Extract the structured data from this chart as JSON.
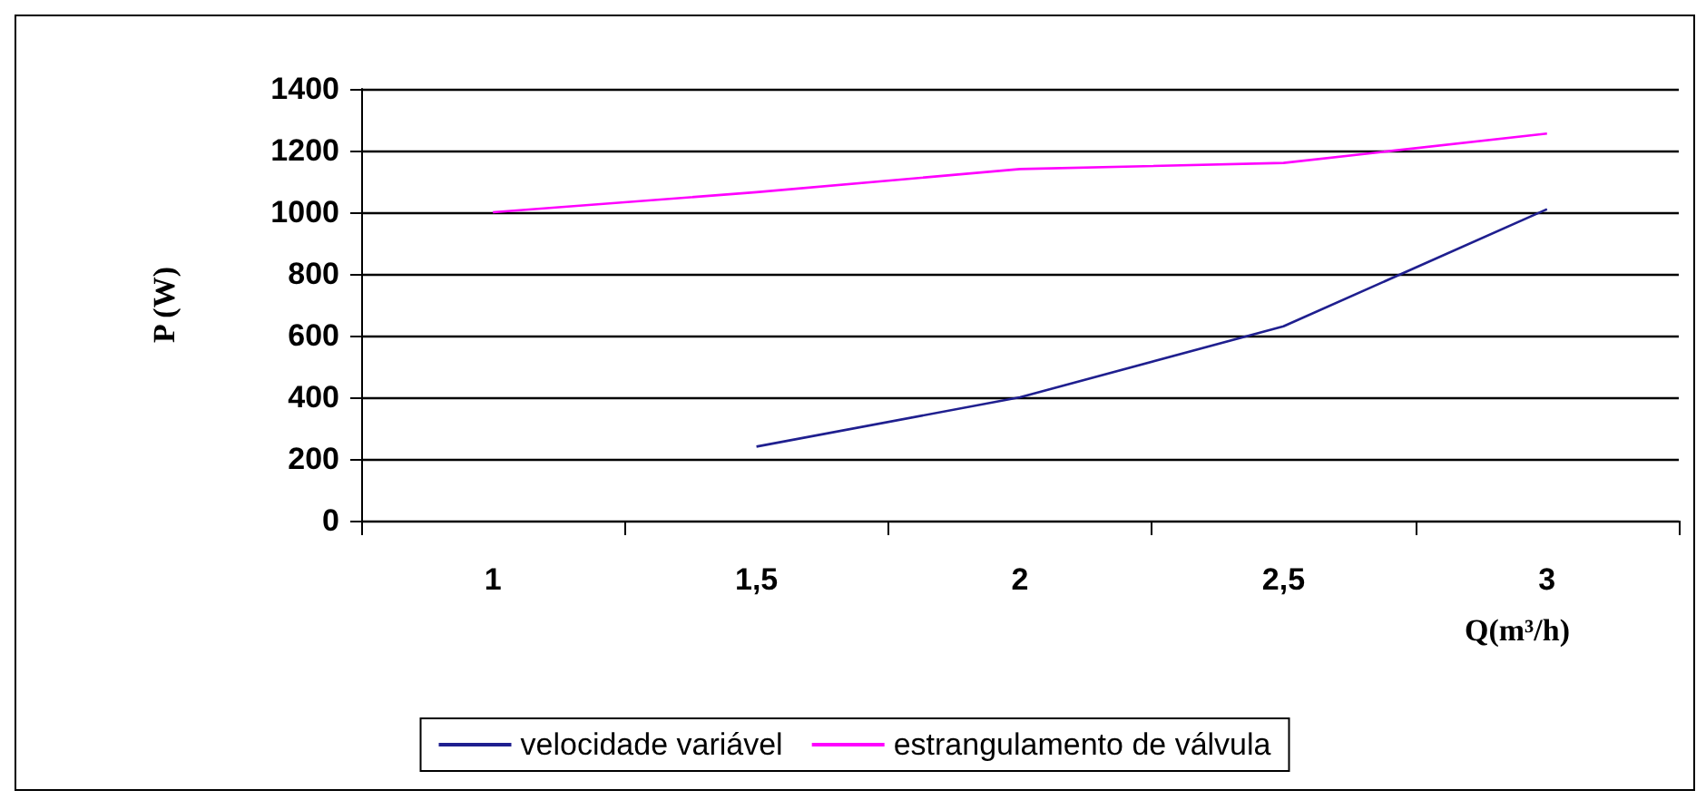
{
  "chart_data": {
    "type": "line",
    "xlabel": "Q(m³/h)",
    "ylabel": "P (W)",
    "categories": [
      "1",
      "1,5",
      "2",
      "2,5",
      "3"
    ],
    "series": [
      {
        "name": "velocidade variável",
        "color": "#1f1f8f",
        "values": [
          null,
          240,
          400,
          630,
          1010
        ]
      },
      {
        "name": "estrangulamento de válvula",
        "color": "#ff00ff",
        "values": [
          1000,
          1065,
          1140,
          1160,
          1255
        ]
      }
    ],
    "ylim": [
      0,
      1400
    ],
    "yticks": [
      0,
      200,
      400,
      600,
      800,
      1000,
      1200,
      1400
    ],
    "grid": "y",
    "legend": "bottom",
    "marker": "none",
    "line_style": "solid"
  }
}
